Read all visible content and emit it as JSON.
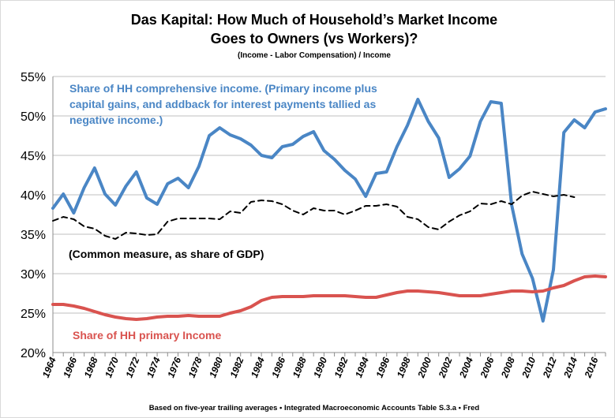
{
  "chart_data": {
    "type": "line",
    "title_lines": [
      "Das Kapital: How Much of Household’s Market Income",
      "Goes to Owners (vs Workers)?"
    ],
    "subtitle": "(Income - Labor Compensation) / Income",
    "footnote": "Based on five-year trailing averages • Integrated Macroeconomic Accounts Table S.3.a • Fred",
    "ylim": [
      20,
      55
    ],
    "y_ticks": [
      "20%",
      "25%",
      "30%",
      "35%",
      "40%",
      "45%",
      "50%",
      "55%"
    ],
    "x_range": [
      1964,
      2017
    ],
    "x_ticks": [
      "1964",
      "1966",
      "1968",
      "1970",
      "1972",
      "1974",
      "1976",
      "1978",
      "1980",
      "1982",
      "1984",
      "1986",
      "1988",
      "1990",
      "1992",
      "1994",
      "1996",
      "1998",
      "2000",
      "2002",
      "2004",
      "2006",
      "2008",
      "2010",
      "2012",
      "2014",
      "2016"
    ],
    "grid": true,
    "annotations": [
      {
        "series": 0,
        "lines": [
          "Share of HH comprehensive income. (Primary income plus",
          "capital gains, and addback for interest payments tallied as",
          "negative income.)"
        ]
      },
      {
        "series": 1,
        "lines": [
          "(Common measure, as share of GDP)"
        ]
      },
      {
        "series": 2,
        "lines": [
          "Share of HH primary Income"
        ]
      }
    ],
    "series": [
      {
        "color": "#4a86c5",
        "style": "solid",
        "x": [
          1964,
          1965,
          1966,
          1967,
          1968,
          1969,
          1970,
          1971,
          1972,
          1973,
          1974,
          1975,
          1976,
          1977,
          1978,
          1979,
          1980,
          1981,
          1982,
          1983,
          1984,
          1985,
          1986,
          1987,
          1988,
          1989,
          1990,
          1991,
          1992,
          1993,
          1994,
          1995,
          1996,
          1997,
          1998,
          1999,
          2000,
          2001,
          2002,
          2003,
          2004,
          2005,
          2006,
          2007,
          2008,
          2009,
          2010,
          2011,
          2012,
          2013,
          2014,
          2015,
          2016,
          2017
        ],
        "values": [
          38.3,
          40.1,
          37.7,
          40.9,
          43.4,
          40.1,
          38.7,
          41.1,
          42.9,
          39.6,
          38.8,
          41.4,
          42.1,
          40.9,
          43.6,
          47.5,
          48.5,
          47.6,
          47.1,
          46.3,
          45.0,
          44.7,
          46.1,
          46.4,
          47.4,
          48.0,
          45.6,
          44.5,
          43.1,
          42.0,
          39.8,
          42.7,
          42.9,
          46.1,
          48.8,
          52.1,
          49.3,
          47.2,
          42.2,
          43.3,
          44.9,
          49.3,
          51.8,
          51.6,
          38.7,
          32.5,
          29.4,
          24.0,
          30.5,
          47.9,
          49.5,
          48.5,
          50.5,
          50.9
        ]
      },
      {
        "color": "#000000",
        "style": "dashed",
        "x": [
          1964,
          1965,
          1966,
          1967,
          1968,
          1969,
          1970,
          1971,
          1972,
          1973,
          1974,
          1975,
          1976,
          1977,
          1978,
          1979,
          1980,
          1981,
          1982,
          1983,
          1984,
          1985,
          1986,
          1987,
          1988,
          1989,
          1990,
          1991,
          1992,
          1993,
          1994,
          1995,
          1996,
          1997,
          1998,
          1999,
          2000,
          2001,
          2002,
          2003,
          2004,
          2005,
          2006,
          2007,
          2008,
          2009,
          2010,
          2011,
          2012,
          2013,
          2014
        ],
        "values": [
          36.7,
          37.2,
          36.9,
          36.0,
          35.7,
          34.8,
          34.4,
          35.2,
          35.1,
          34.9,
          35.0,
          36.6,
          37.0,
          37.0,
          37.0,
          37.0,
          36.9,
          37.9,
          37.7,
          39.1,
          39.3,
          39.2,
          38.8,
          38.0,
          37.5,
          38.3,
          38.0,
          38.0,
          37.5,
          38.0,
          38.6,
          38.6,
          38.8,
          38.5,
          37.2,
          36.9,
          35.9,
          35.6,
          36.6,
          37.4,
          37.9,
          38.9,
          38.8,
          39.2,
          38.8,
          39.9,
          40.4,
          40.1,
          39.8,
          40.0,
          39.7
        ]
      },
      {
        "color": "#d9534f",
        "style": "solid",
        "x": [
          1964,
          1965,
          1966,
          1967,
          1968,
          1969,
          1970,
          1971,
          1972,
          1973,
          1974,
          1975,
          1976,
          1977,
          1978,
          1979,
          1980,
          1981,
          1982,
          1983,
          1984,
          1985,
          1986,
          1987,
          1988,
          1989,
          1990,
          1991,
          1992,
          1993,
          1994,
          1995,
          1996,
          1997,
          1998,
          1999,
          2000,
          2001,
          2002,
          2003,
          2004,
          2005,
          2006,
          2007,
          2008,
          2009,
          2010,
          2011,
          2012,
          2013,
          2014,
          2015,
          2016,
          2017
        ],
        "values": [
          26.1,
          26.1,
          25.9,
          25.6,
          25.2,
          24.8,
          24.5,
          24.3,
          24.2,
          24.3,
          24.5,
          24.6,
          24.6,
          24.7,
          24.6,
          24.6,
          24.6,
          25.0,
          25.3,
          25.8,
          26.6,
          27.0,
          27.1,
          27.1,
          27.1,
          27.2,
          27.2,
          27.2,
          27.2,
          27.1,
          27.0,
          27.0,
          27.3,
          27.6,
          27.8,
          27.8,
          27.7,
          27.6,
          27.4,
          27.2,
          27.2,
          27.2,
          27.4,
          27.6,
          27.8,
          27.8,
          27.7,
          27.8,
          28.2,
          28.5,
          29.1,
          29.6,
          29.7,
          29.6
        ]
      }
    ]
  }
}
